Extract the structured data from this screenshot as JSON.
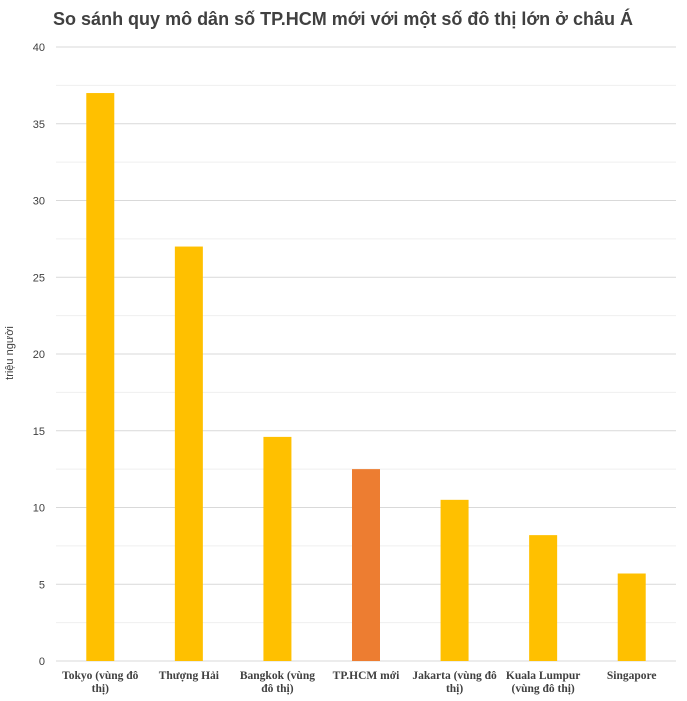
{
  "chart_data": {
    "type": "bar",
    "title": "So sánh quy mô dân số TP.HCM mới với một số đô thị lớn ở châu Á",
    "ylabel": "triệu người",
    "xlabel": "",
    "ylim": [
      0,
      40
    ],
    "yticks": [
      "0",
      "5",
      "10",
      "15",
      "20",
      "25",
      "30",
      "35",
      "40"
    ],
    "grid": true,
    "categories": [
      [
        "Tokyo (vùng đô",
        "thị)"
      ],
      [
        "Thượng Hải"
      ],
      [
        "Bangkok (vùng",
        "đô thị)"
      ],
      [
        "TP.HCM mới"
      ],
      [
        "Jakarta (vùng đô",
        "thị)"
      ],
      [
        "Kuala Lumpur",
        "(vùng đô thị)"
      ],
      [
        "Singapore"
      ]
    ],
    "values": [
      37,
      27,
      14.6,
      12.5,
      10.5,
      8.2,
      5.7
    ],
    "colors": [
      "#FFC000",
      "#FFC000",
      "#FFC000",
      "#ED7D31",
      "#FFC000",
      "#FFC000",
      "#FFC000"
    ],
    "grid_color": "#D9D9D9"
  }
}
